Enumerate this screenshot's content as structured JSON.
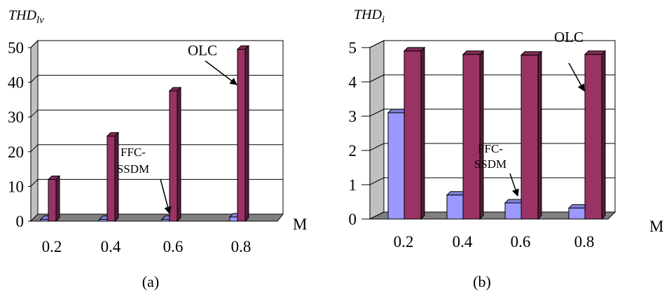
{
  "chart_data": [
    {
      "type": "bar",
      "title": "THD",
      "title_subscript": "lv",
      "caption": "(a)",
      "categories": [
        "0.2",
        "0.4",
        "0.6",
        "0.8"
      ],
      "xlabel": "M",
      "ylabel": "",
      "ylim": [
        0,
        50
      ],
      "yticks": [
        "0",
        "10",
        "20",
        "30",
        "40",
        "50"
      ],
      "grid": true,
      "series": [
        {
          "name": "FFC-SSDM",
          "values": [
            0.5,
            0.5,
            0.5,
            1.2
          ],
          "color": "#9999ff"
        },
        {
          "name": "OLC",
          "values": [
            12,
            24.5,
            37.5,
            49.5
          ],
          "color": "#993366"
        }
      ],
      "annotations": [
        {
          "text": "OLC",
          "points_to": "OLC"
        },
        {
          "text_lines": [
            "FFC-",
            "SSDM"
          ],
          "points_to": "FFC-SSDM"
        }
      ]
    },
    {
      "type": "bar",
      "title": "THD",
      "title_subscript": "i",
      "caption": "(b)",
      "categories": [
        "0.2",
        "0.4",
        "0.6",
        "0.8"
      ],
      "xlabel": "M",
      "ylabel": "",
      "ylim": [
        0,
        5
      ],
      "yticks": [
        "0",
        "1",
        "2",
        "3",
        "4",
        "5"
      ],
      "grid": true,
      "series": [
        {
          "name": "FFC-SSDM",
          "values": [
            3.1,
            0.7,
            0.47,
            0.32
          ],
          "color": "#9999ff"
        },
        {
          "name": "OLC",
          "values": [
            4.9,
            4.8,
            4.78,
            4.8
          ],
          "color": "#993366"
        }
      ],
      "annotations": [
        {
          "text": "OLC",
          "points_to": "OLC"
        },
        {
          "text_lines": [
            "FFC-",
            "SSDM"
          ],
          "points_to": "FFC-SSDM"
        }
      ]
    }
  ]
}
